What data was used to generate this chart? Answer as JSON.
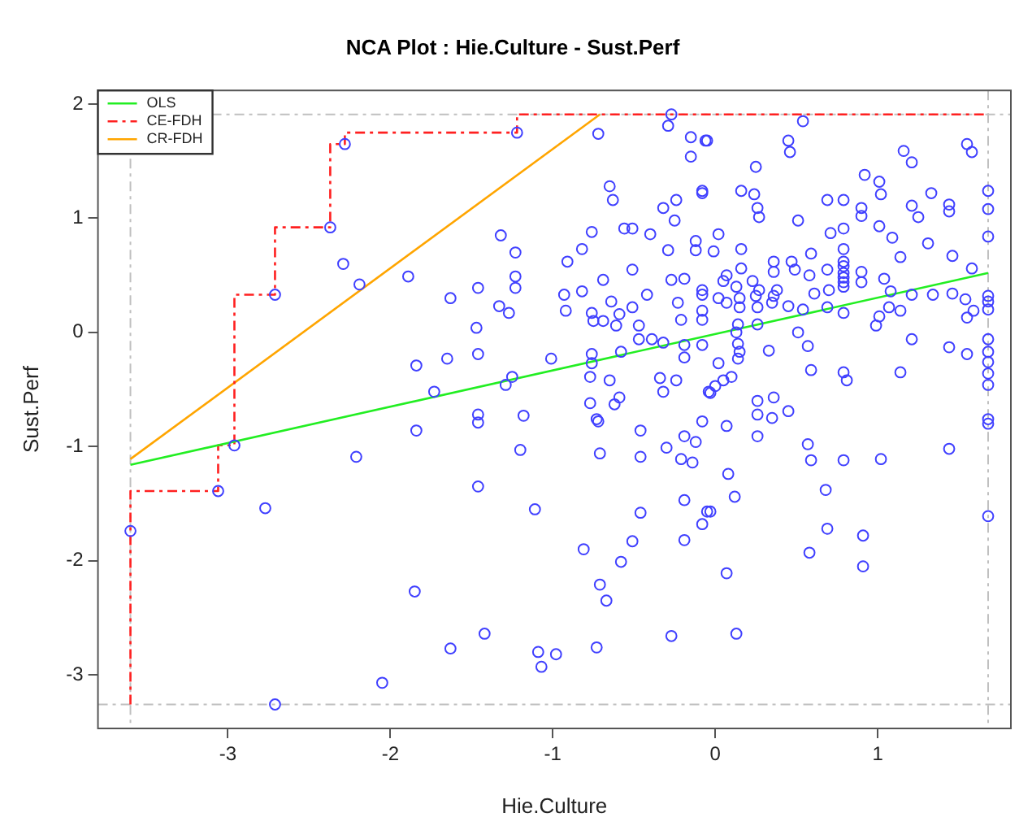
{
  "chart_data": {
    "type": "scatter",
    "title": "NCA Plot : Hie.Culture - Sust.Perf",
    "xlabel": "Hie.Culture",
    "ylabel": "Sust.Perf",
    "xlim": [
      -3.8,
      1.82
    ],
    "ylim": [
      -3.47,
      2.12
    ],
    "xticks": [
      -3,
      -2,
      -1,
      0,
      1
    ],
    "yticks": [
      -3,
      -2,
      -1,
      0,
      1,
      2
    ],
    "legend": "top left",
    "ref_lines": [
      {
        "axis": "x",
        "value": -3.6,
        "color": "#c0c0c0",
        "line_style": "dashed"
      },
      {
        "axis": "x",
        "value": 1.68,
        "color": "#c0c0c0",
        "line_style": "dashed"
      },
      {
        "axis": "y",
        "value": -3.26,
        "color": "#c0c0c0",
        "line_style": "dashed"
      },
      {
        "axis": "y",
        "value": 1.91,
        "color": "#c0c0c0",
        "line_style": "dashed"
      }
    ],
    "series": [
      {
        "type": "scatter",
        "color": "#4040ff",
        "marker": "circle",
        "x": [
          -3.6,
          -3.06,
          -2.96,
          -2.71,
          -2.37,
          -2.28,
          -1.22,
          -0.27,
          -0.29,
          -2.71,
          -2.29,
          -2.19,
          -1.89,
          -2.77,
          -2.21,
          -2.05,
          -0.72,
          -0.15,
          -0.06,
          -0.15,
          -0.65,
          -0.63,
          -0.32,
          -0.24,
          -0.08,
          -0.25,
          -1.32,
          -1.23,
          -0.76,
          -0.82,
          -0.91,
          -0.56,
          -0.51,
          -0.4,
          -0.29,
          -0.12,
          -0.12,
          -1.23,
          -1.23,
          -0.69,
          -0.51,
          -0.27,
          -0.19,
          -1.63,
          -1.46,
          -1.33,
          -1.27,
          -0.93,
          -0.92,
          -0.82,
          -0.64,
          -0.42,
          -0.23,
          -0.08,
          -0.76,
          -0.75,
          -0.69,
          -0.59,
          -0.51,
          -0.61,
          -0.21,
          -0.08,
          -1.47,
          -0.47,
          -0.47,
          -0.39,
          -0.32,
          -0.19,
          -0.08,
          -1.84,
          -1.65,
          -1.46,
          -1.01,
          -0.76,
          -0.76,
          -0.58,
          -0.19,
          -1.73,
          -1.29,
          -1.25,
          -0.77,
          -0.65,
          -0.34,
          -0.24,
          -0.32,
          -0.04,
          -1.46,
          -1.18,
          -0.77,
          -0.59,
          -0.62,
          -0.73,
          -1.84,
          -1.46,
          -0.72,
          -0.46,
          -1.2,
          -0.71,
          -0.46,
          -0.3,
          -0.19,
          -0.21,
          -0.14,
          -0.12,
          -0.08,
          -1.46,
          -1.11,
          -0.46,
          -0.19,
          -0.05,
          -0.08,
          -0.81,
          -0.51,
          -0.19,
          -0.58,
          -0.71,
          -0.67,
          -1.85,
          -1.63,
          -1.42,
          -1.09,
          -0.98,
          -1.07,
          -0.73,
          -0.27,
          0.54,
          -0.05,
          0.45,
          0.46,
          1.55,
          1.58,
          0.25,
          1.16,
          1.21,
          0.92,
          1.01,
          1.02,
          1.33,
          0.16,
          0.24,
          0.26,
          0.27,
          -0.08,
          0.69,
          0.79,
          0.9,
          0.9,
          1.21,
          1.25,
          1.44,
          1.44,
          1.68,
          1.68,
          1.68,
          0.51,
          0.02,
          0.71,
          0.79,
          1.01,
          1.09,
          1.31,
          0.16,
          -0.01,
          0.59,
          0.79,
          1.14,
          1.46,
          1.58,
          0.36,
          0.16,
          0.47,
          0.49,
          0.36,
          0.07,
          0.58,
          0.69,
          0.79,
          0.79,
          0.79,
          0.79,
          0.79,
          0.9,
          1.04,
          0.9,
          0.05,
          0.23,
          0.13,
          0.27,
          0.38,
          0.61,
          0.7,
          0.79,
          -0.08,
          0.02,
          0.15,
          0.25,
          0.36,
          1.08,
          1.21,
          1.34,
          1.46,
          1.54,
          1.68,
          1.68,
          0.07,
          0.15,
          0.26,
          0.35,
          0.45,
          0.54,
          0.69,
          0.79,
          1.07,
          1.14,
          1.59,
          1.68,
          1.01,
          0.99,
          1.55,
          -0.08,
          0.14,
          0.26,
          0.13,
          0.51,
          0.14,
          0.57,
          1.21,
          1.44,
          1.55,
          1.68,
          1.68,
          1.68,
          0.33,
          0.15,
          0.14,
          0.02,
          0.59,
          0.79,
          0.81,
          1.14,
          1.68,
          1.68,
          0.1,
          0.05,
          0.0,
          -0.03,
          0.26,
          0.36,
          0.45,
          0.26,
          0.35,
          1.68,
          0.07,
          0.26,
          0.57,
          0.59,
          0.79,
          1.02,
          1.44,
          1.68,
          1.68,
          0.08,
          0.12,
          0.68,
          -0.03,
          0.69,
          0.91,
          0.58,
          0.91,
          0.07,
          0.13
        ],
        "values": [
          -1.74,
          -1.39,
          -0.99,
          0.33,
          0.92,
          1.65,
          1.75,
          1.91,
          1.81,
          -3.26,
          0.6,
          0.42,
          0.49,
          -1.54,
          -1.09,
          -3.07,
          1.74,
          1.71,
          1.68,
          1.54,
          1.28,
          1.16,
          1.09,
          1.16,
          1.22,
          0.98,
          0.85,
          0.7,
          0.88,
          0.73,
          0.62,
          0.91,
          0.91,
          0.86,
          0.72,
          0.8,
          0.72,
          0.49,
          0.39,
          0.46,
          0.55,
          0.46,
          0.47,
          0.3,
          0.39,
          0.23,
          0.17,
          0.33,
          0.19,
          0.36,
          0.27,
          0.33,
          0.26,
          0.33,
          0.17,
          0.1,
          0.1,
          0.16,
          0.22,
          0.06,
          0.11,
          0.19,
          0.04,
          0.06,
          -0.06,
          -0.06,
          -0.09,
          -0.11,
          -0.11,
          -0.29,
          -0.23,
          -0.19,
          -0.23,
          -0.19,
          -0.27,
          -0.17,
          -0.22,
          -0.52,
          -0.46,
          -0.39,
          -0.39,
          -0.42,
          -0.4,
          -0.42,
          -0.52,
          -0.52,
          -0.72,
          -0.73,
          -0.62,
          -0.57,
          -0.63,
          -0.76,
          -0.86,
          -0.79,
          -0.78,
          -0.86,
          -1.03,
          -1.06,
          -1.09,
          -1.01,
          -0.91,
          -1.11,
          -1.14,
          -0.96,
          -0.78,
          -1.35,
          -1.55,
          -1.58,
          -1.47,
          -1.57,
          -1.68,
          -1.9,
          -1.83,
          -1.82,
          -2.01,
          -2.21,
          -2.35,
          -2.27,
          -2.77,
          -2.64,
          -2.8,
          -2.82,
          -2.93,
          -2.76,
          -2.66,
          1.85,
          1.68,
          1.68,
          1.58,
          1.65,
          1.58,
          1.45,
          1.59,
          1.49,
          1.38,
          1.32,
          1.21,
          1.22,
          1.24,
          1.21,
          1.09,
          1.01,
          1.24,
          1.16,
          1.16,
          1.09,
          1.02,
          1.11,
          1.01,
          1.12,
          1.06,
          1.24,
          1.08,
          0.84,
          0.98,
          0.86,
          0.87,
          0.91,
          0.93,
          0.83,
          0.78,
          0.73,
          0.71,
          0.69,
          0.73,
          0.66,
          0.67,
          0.56,
          0.62,
          0.56,
          0.62,
          0.55,
          0.53,
          0.5,
          0.5,
          0.55,
          0.62,
          0.58,
          0.52,
          0.48,
          0.44,
          0.53,
          0.47,
          0.44,
          0.45,
          0.45,
          0.4,
          0.37,
          0.37,
          0.34,
          0.37,
          0.4,
          0.37,
          0.3,
          0.3,
          0.32,
          0.32,
          0.36,
          0.33,
          0.33,
          0.34,
          0.29,
          0.32,
          0.27,
          0.26,
          0.22,
          0.22,
          0.26,
          0.23,
          0.2,
          0.22,
          0.17,
          0.22,
          0.19,
          0.19,
          0.2,
          0.14,
          0.06,
          0.13,
          0.11,
          0.07,
          0.07,
          0.0,
          0.0,
          -0.1,
          -0.12,
          -0.06,
          -0.13,
          -0.19,
          -0.06,
          -0.17,
          -0.26,
          -0.16,
          -0.17,
          -0.23,
          -0.27,
          -0.33,
          -0.35,
          -0.42,
          -0.35,
          -0.36,
          -0.46,
          -0.39,
          -0.42,
          -0.47,
          -0.53,
          -0.6,
          -0.57,
          -0.69,
          -0.72,
          -0.75,
          -0.76,
          -0.82,
          -0.91,
          -0.98,
          -1.12,
          -1.12,
          -1.11,
          -1.02,
          -0.8,
          -1.61,
          -1.24,
          -1.44,
          -1.38,
          -1.57,
          -1.72,
          -1.78,
          -1.93,
          -2.05,
          -2.11,
          -2.64
        ]
      },
      {
        "type": "line",
        "name": "OLS",
        "color": "#22ee22",
        "line_style": "solid",
        "x": [
          -3.6,
          1.68
        ],
        "values": [
          -1.16,
          0.52
        ]
      },
      {
        "type": "step",
        "name": "CE-FDH",
        "color": "#ff2020",
        "line_style": "dashed",
        "x": [
          -3.6,
          -3.6,
          -3.06,
          -2.96,
          -2.71,
          -2.37,
          -2.28,
          -1.22,
          -0.27,
          1.68
        ],
        "values": [
          -3.26,
          -1.74,
          -1.39,
          -0.99,
          0.33,
          0.92,
          1.65,
          1.75,
          1.91,
          1.91
        ]
      },
      {
        "type": "line",
        "name": "CR-FDH",
        "color": "#ffa500",
        "line_style": "solid",
        "x": [
          -3.6,
          -0.71
        ],
        "values": [
          -1.11,
          1.91
        ]
      }
    ]
  }
}
